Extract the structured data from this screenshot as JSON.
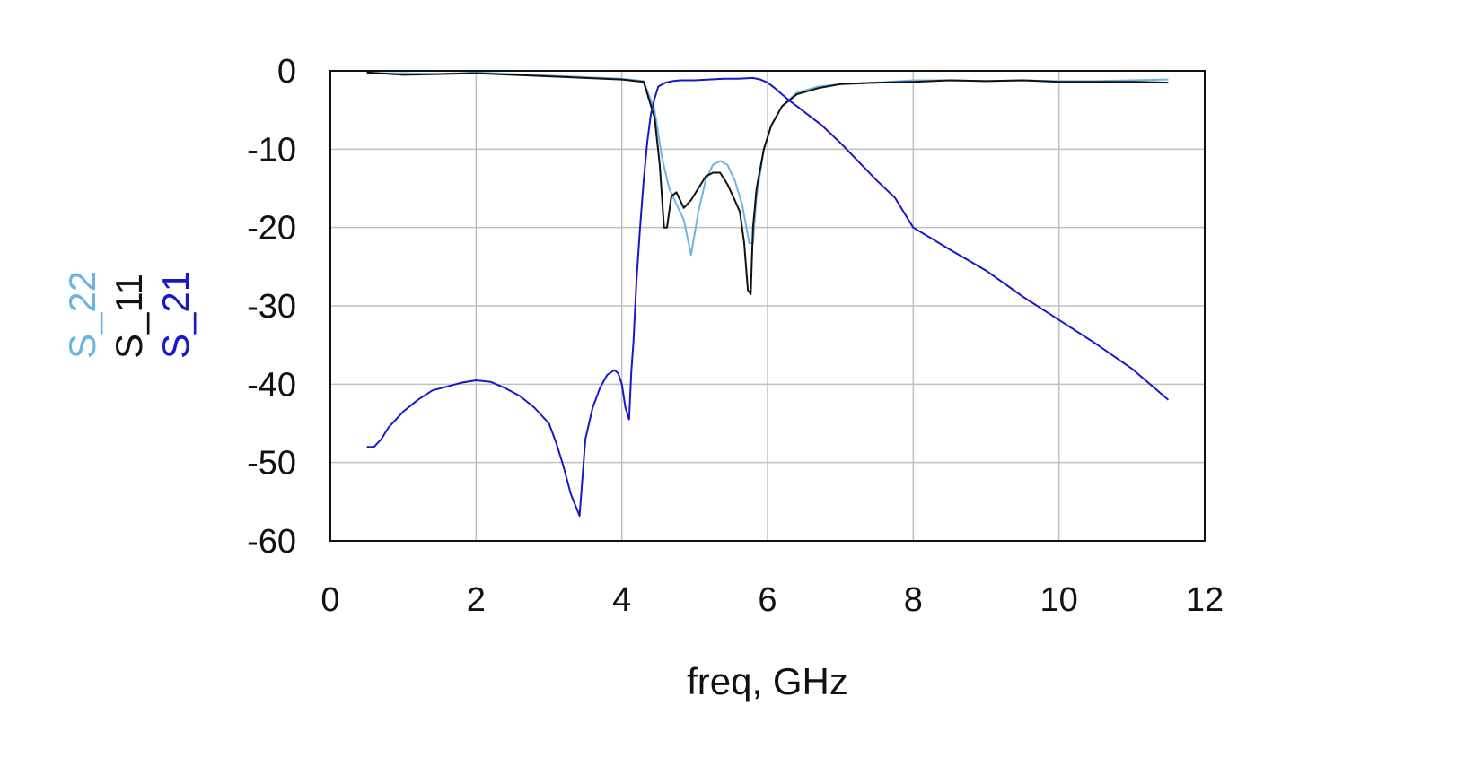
{
  "colors": {
    "S_22": "#6cb4e6",
    "S_11": "#111111",
    "S_21": "#1818c8",
    "grid": "#c0c0c0",
    "frame": "#111111"
  },
  "chart_data": {
    "type": "line",
    "title": "",
    "xlabel": "freq, GHz",
    "ylabel": "",
    "xlim": [
      0,
      12
    ],
    "ylim": [
      -60,
      0
    ],
    "x_ticks": [
      0,
      2,
      4,
      6,
      8,
      10,
      12
    ],
    "y_ticks": [
      0,
      -10,
      -20,
      -30,
      -40,
      -50,
      -60
    ],
    "x_tick_labels": [
      "0",
      "2",
      "4",
      "6",
      "8",
      "10",
      "12"
    ],
    "y_tick_labels": [
      "0",
      "-10",
      "-20",
      "-30",
      "-40",
      "-50",
      "-60"
    ],
    "grid": true,
    "legend": {
      "placement": "left, vertical",
      "entries": [
        "S_22",
        "S_11",
        "S_21"
      ]
    },
    "series": [
      {
        "name": "S_22",
        "x": [
          0.5,
          1.0,
          1.5,
          2.0,
          2.5,
          3.0,
          3.5,
          4.0,
          4.3,
          4.45,
          4.55,
          4.65,
          4.75,
          4.85,
          4.95,
          5.05,
          5.15,
          5.25,
          5.35,
          5.45,
          5.55,
          5.65,
          5.75,
          5.8,
          5.85,
          5.95,
          6.05,
          6.2,
          6.4,
          6.7,
          7.0,
          7.5,
          8.0,
          8.5,
          9.0,
          9.5,
          10.0,
          10.5,
          11.0,
          11.5
        ],
        "y": [
          -0.3,
          -0.3,
          -0.4,
          -0.2,
          -0.4,
          -0.6,
          -0.8,
          -1.0,
          -1.3,
          -5.0,
          -11.0,
          -15.0,
          -17.0,
          -19.0,
          -23.5,
          -18.0,
          -14.0,
          -12.0,
          -11.5,
          -12.0,
          -14.0,
          -17.0,
          -22.0,
          -22.0,
          -16.0,
          -10.0,
          -7.0,
          -4.5,
          -2.8,
          -2.0,
          -1.7,
          -1.5,
          -1.2,
          -1.2,
          -1.3,
          -1.2,
          -1.3,
          -1.3,
          -1.2,
          -1.1
        ]
      },
      {
        "name": "S_11",
        "x": [
          0.5,
          1.0,
          1.5,
          2.0,
          2.5,
          3.0,
          3.5,
          4.0,
          4.3,
          4.45,
          4.52,
          4.58,
          4.62,
          4.68,
          4.75,
          4.85,
          4.95,
          5.05,
          5.15,
          5.25,
          5.35,
          5.45,
          5.55,
          5.62,
          5.68,
          5.73,
          5.77,
          5.8,
          5.85,
          5.95,
          6.05,
          6.2,
          6.4,
          6.7,
          7.0,
          7.5,
          8.0,
          8.5,
          9.0,
          9.5,
          10.0,
          10.5,
          11.0,
          11.5
        ],
        "y": [
          -0.2,
          -0.5,
          -0.4,
          -0.3,
          -0.5,
          -0.7,
          -0.9,
          -1.1,
          -1.4,
          -6.0,
          -12.0,
          -20.0,
          -20.0,
          -16.0,
          -15.5,
          -17.5,
          -16.5,
          -15.0,
          -13.5,
          -13.0,
          -13.0,
          -14.5,
          -16.5,
          -18.0,
          -22.0,
          -28.0,
          -28.5,
          -20.0,
          -15.0,
          -10.0,
          -7.0,
          -4.5,
          -3.0,
          -2.2,
          -1.7,
          -1.5,
          -1.4,
          -1.2,
          -1.3,
          -1.2,
          -1.4,
          -1.4,
          -1.4,
          -1.5
        ]
      },
      {
        "name": "S_21",
        "x": [
          0.5,
          0.6,
          0.7,
          0.8,
          1.0,
          1.2,
          1.4,
          1.6,
          1.8,
          2.0,
          2.2,
          2.4,
          2.6,
          2.8,
          3.0,
          3.1,
          3.2,
          3.3,
          3.42,
          3.5,
          3.6,
          3.7,
          3.8,
          3.9,
          3.95,
          4.0,
          4.05,
          4.1,
          4.13,
          4.16,
          4.2,
          4.25,
          4.3,
          4.35,
          4.4,
          4.45,
          4.5,
          4.6,
          4.7,
          4.8,
          5.0,
          5.2,
          5.4,
          5.6,
          5.8,
          5.9,
          6.0,
          6.1,
          6.2,
          6.3,
          6.5,
          6.75,
          7.0,
          7.25,
          7.5,
          7.75,
          8.0,
          8.5,
          9.0,
          9.5,
          10.0,
          10.5,
          11.0,
          11.5
        ],
        "y": [
          -48.0,
          -48.0,
          -47.0,
          -45.5,
          -43.5,
          -42.0,
          -40.8,
          -40.3,
          -39.8,
          -39.5,
          -39.7,
          -40.5,
          -41.5,
          -43.0,
          -45.0,
          -47.5,
          -50.5,
          -54.0,
          -56.8,
          -47.0,
          -43.0,
          -40.5,
          -38.8,
          -38.2,
          -38.6,
          -40.0,
          -43.0,
          -44.5,
          -38.5,
          -34.5,
          -27.0,
          -20.0,
          -14.0,
          -9.0,
          -5.5,
          -3.5,
          -2.0,
          -1.5,
          -1.3,
          -1.2,
          -1.2,
          -1.1,
          -1.0,
          -1.0,
          -0.9,
          -1.1,
          -1.5,
          -2.2,
          -3.0,
          -3.8,
          -5.2,
          -7.0,
          -9.2,
          -11.6,
          -14.0,
          -16.2,
          -20.0,
          -22.8,
          -25.5,
          -28.8,
          -31.8,
          -34.8,
          -38.0,
          -42.0
        ]
      }
    ]
  }
}
